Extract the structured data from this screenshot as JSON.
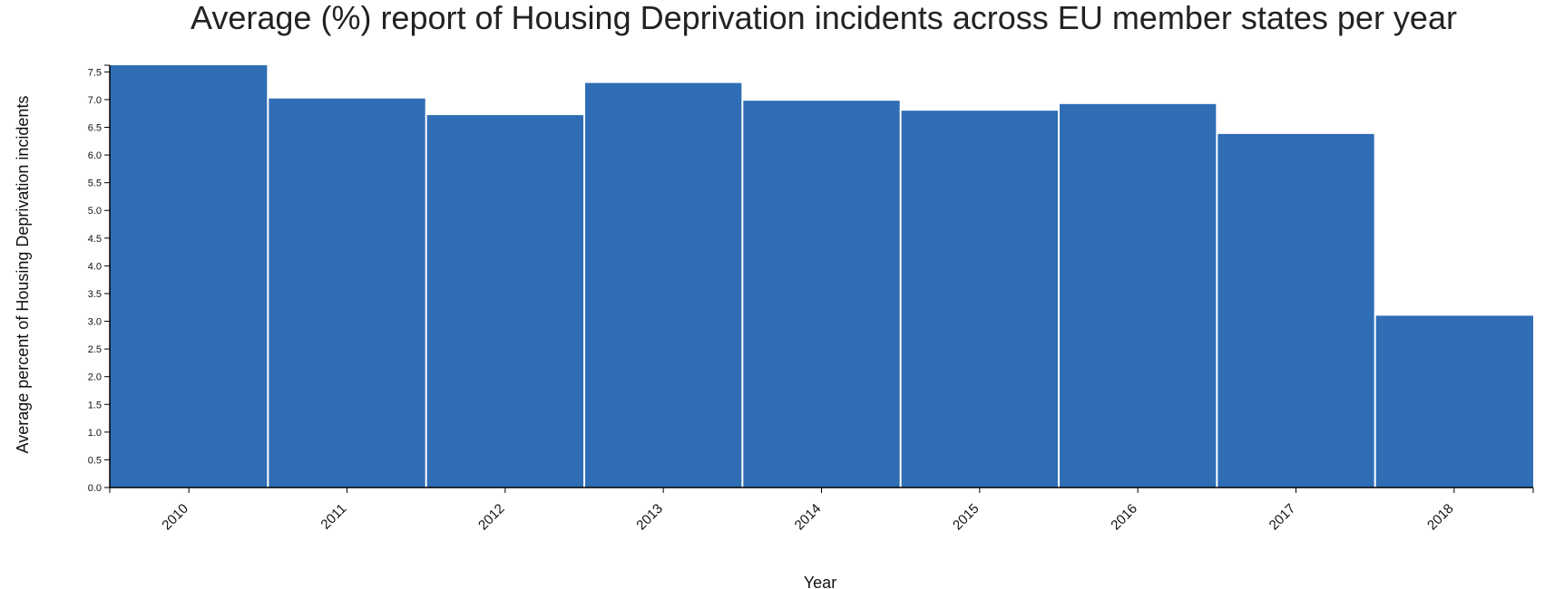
{
  "chart_data": {
    "type": "bar",
    "title": "Average (%) report of Housing Deprivation incidents across EU member states per year",
    "xlabel": "Year",
    "ylabel": "Average percent of Housing Deprivation incidents",
    "categories": [
      "2010",
      "2011",
      "2012",
      "2013",
      "2014",
      "2015",
      "2016",
      "2017",
      "2018"
    ],
    "values": [
      7.62,
      7.02,
      6.72,
      7.3,
      6.98,
      6.8,
      6.92,
      6.38,
      3.1
    ],
    "ylim": [
      0,
      7.62
    ],
    "yticks": [
      "0.0",
      "0.5",
      "1.0",
      "1.5",
      "2.0",
      "2.5",
      "3.0",
      "3.5",
      "4.0",
      "4.5",
      "5.0",
      "5.5",
      "6.0",
      "6.5",
      "7.0",
      "7.5"
    ],
    "bar_color": "#2f6db5",
    "grid": false,
    "legend": "none"
  }
}
